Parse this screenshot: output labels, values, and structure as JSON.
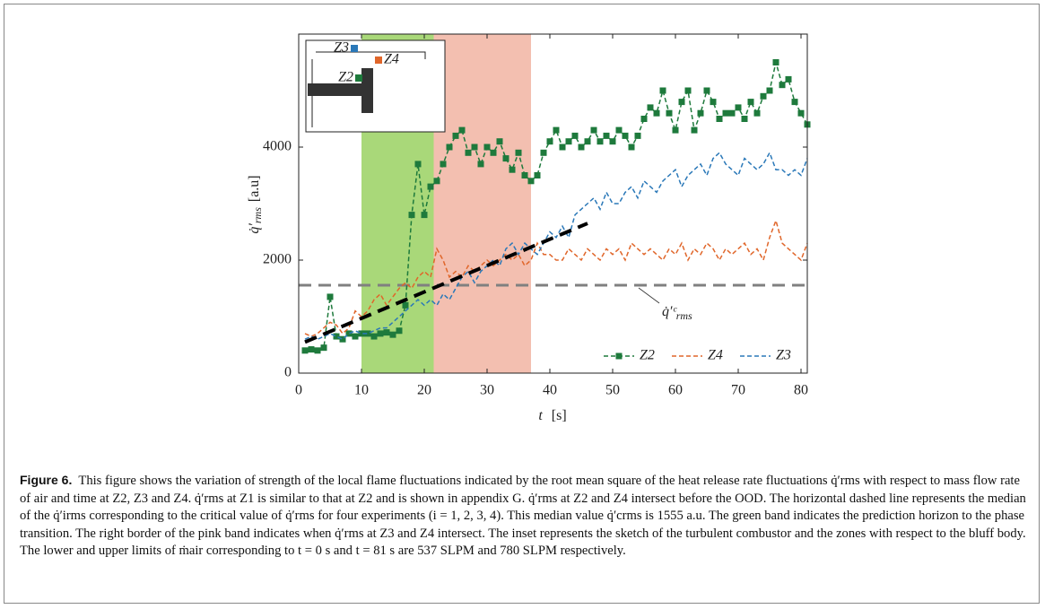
{
  "chart_data": {
    "type": "line",
    "ylabel_symbol": "q̇′",
    "ylabel_sub": "rms",
    "ylabel_unit": "[a.u]",
    "xlabel_symbol": "t",
    "xlabel_unit": "[s]",
    "annotation": "q̇′ᶜ",
    "annotation_sub": "rms",
    "inset_labels": [
      "Z3",
      "Z4",
      "Z2"
    ],
    "xlim": [
      0,
      81
    ],
    "ylim": [
      0,
      6000
    ],
    "xticks": [
      0,
      10,
      20,
      30,
      40,
      50,
      60,
      70,
      80
    ],
    "yticks": [
      0,
      2000,
      4000
    ],
    "legend": "lower right",
    "median": 1555,
    "median_color": "#808080",
    "trend_line": {
      "x": [
        1,
        46
      ],
      "values": [
        550,
        2650
      ],
      "color": "#000000"
    },
    "bands": [
      {
        "from": 10,
        "to": 21.5,
        "color": "#a9d879"
      },
      {
        "from": 21.5,
        "to": 37,
        "color": "#f3bfb0"
      }
    ],
    "x": [
      1,
      2,
      3,
      4,
      5,
      6,
      7,
      8,
      9,
      10,
      11,
      12,
      13,
      14,
      15,
      16,
      17,
      18,
      19,
      20,
      21,
      22,
      23,
      24,
      25,
      26,
      27,
      28,
      29,
      30,
      31,
      32,
      33,
      34,
      35,
      36,
      37,
      38,
      39,
      40,
      41,
      42,
      43,
      44,
      45,
      46,
      47,
      48,
      49,
      50,
      51,
      52,
      53,
      54,
      55,
      56,
      57,
      58,
      59,
      60,
      61,
      62,
      63,
      64,
      65,
      66,
      67,
      68,
      69,
      70,
      71,
      72,
      73,
      74,
      75,
      76,
      77,
      78,
      79,
      80,
      81
    ],
    "series": [
      {
        "name": "Z2",
        "color": "#1e7a3c",
        "marker": true,
        "values": [
          400,
          420,
          400,
          450,
          1350,
          650,
          600,
          700,
          650,
          700,
          700,
          650,
          700,
          720,
          680,
          750,
          1200,
          2800,
          3700,
          2800,
          3300,
          3400,
          3700,
          4000,
          4200,
          4300,
          3900,
          4000,
          3700,
          4000,
          3900,
          4100,
          3800,
          3600,
          3900,
          3500,
          3400,
          3500,
          3900,
          4100,
          4300,
          4000,
          4100,
          4200,
          4000,
          4100,
          4300,
          4100,
          4200,
          4100,
          4300,
          4200,
          4000,
          4200,
          4500,
          4700,
          4600,
          5000,
          4600,
          4300,
          4800,
          5000,
          4300,
          4600,
          5000,
          4800,
          4500,
          4600,
          4600,
          4700,
          4500,
          4800,
          4600,
          4900,
          5000,
          5500,
          5100,
          5200,
          4800,
          4600,
          4400
        ]
      },
      {
        "name": "Z4",
        "color": "#e0662a",
        "marker": false,
        "values": [
          700,
          650,
          700,
          800,
          900,
          850,
          700,
          800,
          1100,
          1000,
          1100,
          1300,
          1400,
          1200,
          1350,
          1500,
          1600,
          1500,
          1700,
          1800,
          1700,
          2200,
          2000,
          1700,
          1800,
          1700,
          1900,
          1800,
          1900,
          2000,
          1900,
          2000,
          2100,
          2000,
          2100,
          1900,
          2000,
          2300,
          2100,
          2100,
          2000,
          2000,
          2200,
          2100,
          2000,
          2200,
          2100,
          2000,
          2200,
          2100,
          2200,
          2000,
          2300,
          2200,
          2100,
          2200,
          2100,
          2000,
          2200,
          2100,
          2300,
          2000,
          2200,
          2100,
          2300,
          2200,
          2000,
          2200,
          2100,
          2200,
          2300,
          2100,
          2200,
          2000,
          2400,
          2700,
          2300,
          2200,
          2100,
          2000,
          2300
        ]
      },
      {
        "name": "Z3",
        "color": "#2a78b8",
        "marker": false,
        "values": [
          600,
          650,
          600,
          650,
          700,
          650,
          600,
          700,
          750,
          700,
          700,
          750,
          800,
          800,
          900,
          1000,
          1100,
          1200,
          1300,
          1200,
          1300,
          1200,
          1400,
          1300,
          1500,
          1700,
          1800,
          1600,
          1800,
          1900,
          2000,
          1900,
          2200,
          2300,
          2100,
          2300,
          2200,
          2100,
          2300,
          2500,
          2400,
          2600,
          2400,
          2800,
          2900,
          3000,
          3100,
          2900,
          3200,
          3000,
          3000,
          3200,
          3300,
          3100,
          3400,
          3300,
          3200,
          3400,
          3500,
          3600,
          3300,
          3500,
          3600,
          3700,
          3500,
          3800,
          3900,
          3700,
          3600,
          3500,
          3800,
          3700,
          3600,
          3700,
          3900,
          3600,
          3600,
          3500,
          3600,
          3500,
          3800
        ]
      }
    ]
  },
  "caption": {
    "label": "Figure 6.",
    "text": "This figure shows the variation of strength of the local flame fluctuations indicated by the root mean square of the heat release rate fluctuations q̇′rms with respect to mass flow rate of air and time at Z2, Z3 and Z4. q̇′rms at Z1 is similar to that at Z2 and is shown in appendix G. q̇′rms at Z2 and Z4 intersect before the OOD. The horizontal dashed line represents the median of the q̇′irms corresponding to the critical value of q̇′rms for four experiments (i = 1, 2, 3, 4). This median value q̇′crms is 1555 a.u. The green band indicates the prediction horizon to the phase transition. The right border of the pink band indicates when q̇′rms at Z3 and Z4 intersect. The inset represents the sketch of the turbulent combustor and the zones with respect to the bluff body. The lower and upper limits of ṁair corresponding to t = 0 s and t = 81 s are 537 SLPM and 780 SLPM respectively."
  }
}
